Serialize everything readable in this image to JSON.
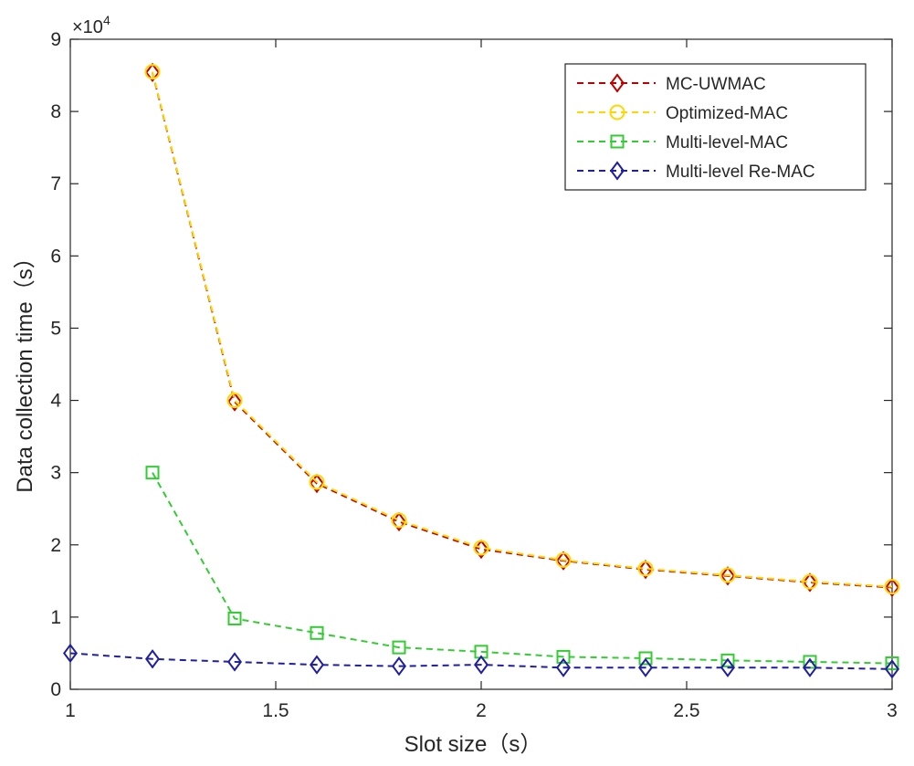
{
  "chart_data": {
    "type": "line",
    "title": "",
    "xlabel": "Slot size（s）",
    "ylabel": "Data collection time（s）",
    "xlim": [
      1,
      3
    ],
    "ylim": [
      0,
      90000
    ],
    "y_exponent_label": "×10",
    "y_exponent_power": "4",
    "x_ticks": [
      1,
      1.5,
      2,
      2.5,
      3
    ],
    "x_tick_labels": [
      "1",
      "1.5",
      "2",
      "2.5",
      "3"
    ],
    "y_ticks": [
      0,
      10000,
      20000,
      30000,
      40000,
      50000,
      60000,
      70000,
      80000,
      90000
    ],
    "y_tick_labels": [
      "0",
      "1",
      "2",
      "3",
      "4",
      "5",
      "6",
      "7",
      "8",
      "9"
    ],
    "legend_position": "top-right",
    "series": [
      {
        "name": "MC-UWMAC",
        "color": "#c00000",
        "marker": "diamond",
        "x": [
          1.2,
          1.4,
          1.6,
          1.8,
          2.0,
          2.2,
          2.4,
          2.6,
          2.8,
          3.0
        ],
        "y": [
          85400,
          39800,
          28500,
          23200,
          19400,
          17800,
          16600,
          15700,
          14800,
          14100
        ]
      },
      {
        "name": "Optimized-MAC",
        "color": "#ffd700",
        "marker": "circle",
        "x": [
          1.2,
          1.4,
          1.6,
          1.8,
          2.0,
          2.2,
          2.4,
          2.6,
          2.8,
          3.0
        ],
        "y": [
          85500,
          40000,
          28700,
          23400,
          19600,
          17900,
          16700,
          15800,
          14900,
          14200
        ]
      },
      {
        "name": "Multi-level-MAC",
        "color": "#33cc33",
        "marker": "square",
        "x": [
          1.2,
          1.4,
          1.6,
          1.8,
          2.0,
          2.2,
          2.4,
          2.6,
          2.8,
          3.0
        ],
        "y": [
          30000,
          9800,
          7800,
          5800,
          5200,
          4500,
          4300,
          4000,
          3800,
          3600
        ]
      },
      {
        "name": "Multi-level Re-MAC",
        "color": "#1f1fa0",
        "marker": "diamond",
        "x": [
          1.0,
          1.2,
          1.4,
          1.6,
          1.8,
          2.0,
          2.2,
          2.4,
          2.6,
          2.8,
          3.0
        ],
        "y": [
          5000,
          4200,
          3800,
          3400,
          3200,
          3400,
          3000,
          3000,
          3000,
          3000,
          2800
        ]
      }
    ]
  }
}
